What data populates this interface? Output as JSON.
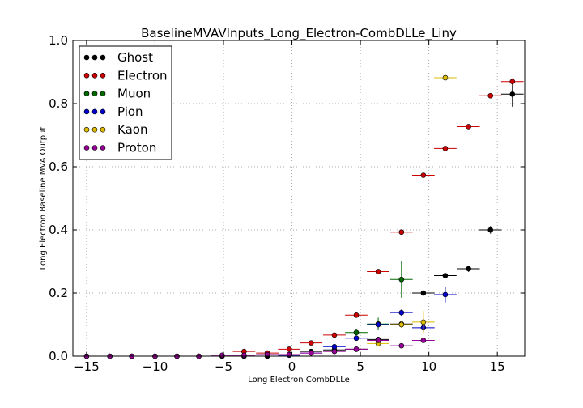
{
  "chart_data": {
    "type": "scatter",
    "title": "BaselineMVAVInputs_Long_Electron-CombDLLe_Liny",
    "xlabel": "Long Electron CombDLLe",
    "ylabel": "Long Electron Baseline MVA Output",
    "xlim": [
      -16,
      17
    ],
    "ylim": [
      0.0,
      1.0
    ],
    "xticks": [
      -15,
      -10,
      -5,
      0,
      5,
      10,
      15
    ],
    "xtick_labels": [
      "−15",
      "−10",
      "−5",
      "0",
      "5",
      "10",
      "15"
    ],
    "yticks": [
      0.0,
      0.2,
      0.4,
      0.6,
      0.8,
      1.0
    ],
    "ytick_labels": [
      "0.0",
      "0.2",
      "0.4",
      "0.6",
      "0.8",
      "1.0"
    ],
    "grid": true,
    "legend_position": "top-left",
    "x_bin_halfwidth": 0.82,
    "series": [
      {
        "name": "Ghost",
        "color": "#000000",
        "points": [
          [
            -15,
            0.0
          ],
          [
            -13.3,
            0.0
          ],
          [
            -11.7,
            0.0
          ],
          [
            -10.0,
            0.0
          ],
          [
            -8.4,
            0.0
          ],
          [
            -6.8,
            0.0
          ],
          [
            -5.1,
            0.0
          ],
          [
            -3.5,
            0.0
          ],
          [
            -1.8,
            0.0
          ],
          [
            -0.2,
            0.005
          ],
          [
            1.4,
            0.015
          ],
          [
            3.1,
            0.02
          ],
          [
            4.7,
            0.022
          ],
          [
            6.3,
            0.053
          ],
          [
            8.0,
            0.102
          ],
          [
            9.6,
            0.2
          ],
          [
            11.2,
            0.255
          ],
          [
            12.9,
            0.277
          ],
          [
            14.5,
            0.4
          ],
          [
            16.1,
            0.83
          ]
        ],
        "yerr": [
          0,
          0,
          0,
          0,
          0,
          0,
          0,
          0,
          0,
          0.002,
          0.003,
          0.003,
          0.004,
          0.006,
          0.008,
          0.008,
          0.008,
          0.01,
          0.012,
          0.04
        ]
      },
      {
        "name": "Electron",
        "color": "#cc0000",
        "points": [
          [
            -3.5,
            0.015
          ],
          [
            -1.8,
            0.01
          ],
          [
            -0.2,
            0.022
          ],
          [
            1.4,
            0.042
          ],
          [
            3.1,
            0.067
          ],
          [
            4.7,
            0.13
          ],
          [
            6.3,
            0.268
          ],
          [
            8.0,
            0.393
          ],
          [
            9.6,
            0.573
          ],
          [
            11.2,
            0.658
          ],
          [
            12.9,
            0.727
          ],
          [
            14.5,
            0.825
          ],
          [
            16.1,
            0.87
          ]
        ],
        "yerr": [
          0.003,
          0.003,
          0.004,
          0.005,
          0.005,
          0.006,
          0.006,
          0.005,
          0.005,
          0.005,
          0.005,
          0.005,
          0.01
        ]
      },
      {
        "name": "Muon",
        "color": "#006600",
        "points": [
          [
            4.7,
            0.075
          ],
          [
            6.3,
            0.102
          ],
          [
            8.0,
            0.243
          ]
        ],
        "yerr": [
          0.01,
          0.02,
          0.058
        ]
      },
      {
        "name": "Pion",
        "color": "#0000cc",
        "points": [
          [
            -0.2,
            0.003
          ],
          [
            1.4,
            0.01
          ],
          [
            3.1,
            0.03
          ],
          [
            4.7,
            0.057
          ],
          [
            6.3,
            0.1
          ],
          [
            8.0,
            0.138
          ],
          [
            9.6,
            0.09
          ],
          [
            11.2,
            0.195
          ]
        ],
        "yerr": [
          0.001,
          0.002,
          0.004,
          0.005,
          0.008,
          0.01,
          0.012,
          0.025
        ]
      },
      {
        "name": "Kaon",
        "color": "#ddbb00",
        "points": [
          [
            6.3,
            0.04
          ],
          [
            8.0,
            0.1
          ],
          [
            9.6,
            0.108
          ],
          [
            11.2,
            0.882
          ]
        ],
        "yerr": [
          0.006,
          0.01,
          0.035,
          0.004
        ]
      },
      {
        "name": "Proton",
        "color": "#990099",
        "points": [
          [
            -15,
            0.0
          ],
          [
            -13.3,
            0.0
          ],
          [
            -11.7,
            0.0
          ],
          [
            -10.0,
            0.0
          ],
          [
            -8.4,
            0.0
          ],
          [
            -6.8,
            0.0
          ],
          [
            -5.1,
            0.003
          ],
          [
            -3.5,
            0.003
          ],
          [
            -1.8,
            0.005
          ],
          [
            -0.2,
            0.005
          ],
          [
            1.4,
            0.01
          ],
          [
            3.1,
            0.015
          ],
          [
            4.7,
            0.022
          ],
          [
            6.3,
            0.05
          ],
          [
            8.0,
            0.033
          ],
          [
            9.6,
            0.05
          ]
        ],
        "yerr": [
          0,
          0,
          0,
          0,
          0,
          0,
          0.001,
          0.001,
          0.002,
          0.002,
          0.002,
          0.003,
          0.004,
          0.005,
          0.005,
          0.006
        ]
      }
    ]
  }
}
